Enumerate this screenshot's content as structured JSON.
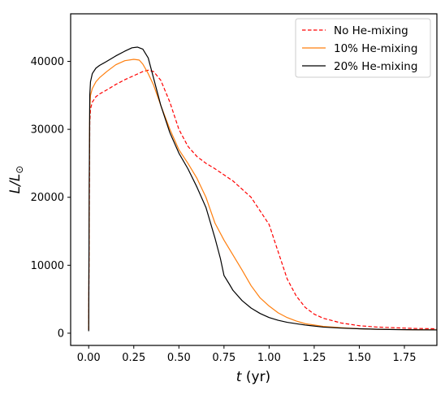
{
  "chart_data": {
    "type": "line",
    "title": "",
    "xlabel_main": "t",
    "xlabel_unit": " (yr)",
    "ylabel_main": "L/L",
    "ylabel_sub": "⊙",
    "xlim": [
      -0.1,
      1.93
    ],
    "ylim": [
      -1800,
      47000
    ],
    "xticks": [
      0.0,
      0.25,
      0.5,
      0.75,
      1.0,
      1.25,
      1.5,
      1.75
    ],
    "xtick_labels": [
      "0.00",
      "0.25",
      "0.50",
      "0.75",
      "1.00",
      "1.25",
      "1.50",
      "1.75"
    ],
    "yticks": [
      0,
      10000,
      20000,
      30000,
      40000
    ],
    "ytick_labels": [
      "0",
      "10000",
      "20000",
      "30000",
      "40000"
    ],
    "grid": false,
    "legend_position": "top-right",
    "series": [
      {
        "name": "No He-mixing",
        "color": "#ff0000",
        "style": "dashed",
        "x": [
          0.0,
          0.003,
          0.006,
          0.01,
          0.02,
          0.04,
          0.06,
          0.1,
          0.15,
          0.2,
          0.25,
          0.3,
          0.33,
          0.36,
          0.4,
          0.45,
          0.5,
          0.55,
          0.6,
          0.65,
          0.7,
          0.75,
          0.8,
          0.85,
          0.9,
          0.95,
          1.0,
          1.05,
          1.1,
          1.15,
          1.2,
          1.25,
          1.3,
          1.4,
          1.5,
          1.6,
          1.7,
          1.8,
          1.93
        ],
        "y": [
          500,
          16000,
          31000,
          33000,
          34000,
          34800,
          35200,
          35800,
          36600,
          37300,
          37900,
          38500,
          38700,
          38500,
          37200,
          34000,
          30000,
          27500,
          26000,
          25000,
          24200,
          23300,
          22400,
          21200,
          20000,
          18000,
          16000,
          12000,
          8000,
          5500,
          3800,
          2800,
          2200,
          1500,
          1100,
          900,
          800,
          700,
          650
        ]
      },
      {
        "name": "10% He-mixing",
        "color": "#ff7f0e",
        "style": "solid",
        "x": [
          0.0,
          0.003,
          0.006,
          0.01,
          0.02,
          0.04,
          0.06,
          0.1,
          0.15,
          0.2,
          0.25,
          0.28,
          0.3,
          0.33,
          0.36,
          0.4,
          0.45,
          0.5,
          0.55,
          0.6,
          0.65,
          0.7,
          0.75,
          0.8,
          0.85,
          0.9,
          0.95,
          1.0,
          1.05,
          1.1,
          1.15,
          1.2,
          1.3,
          1.4,
          1.5,
          1.6,
          1.7,
          1.8,
          1.93
        ],
        "y": [
          500,
          20000,
          33000,
          35000,
          36000,
          37000,
          37600,
          38500,
          39500,
          40100,
          40300,
          40200,
          39600,
          38200,
          36500,
          33500,
          30000,
          27000,
          25000,
          22800,
          20000,
          16200,
          13700,
          11500,
          9300,
          7000,
          5200,
          4000,
          3000,
          2300,
          1800,
          1400,
          1000,
          800,
          650,
          580,
          540,
          510,
          490
        ]
      },
      {
        "name": "20% He-mixing",
        "color": "#000000",
        "style": "solid",
        "x": [
          0.0,
          0.003,
          0.006,
          0.01,
          0.02,
          0.04,
          0.06,
          0.1,
          0.15,
          0.2,
          0.24,
          0.27,
          0.3,
          0.33,
          0.36,
          0.4,
          0.45,
          0.5,
          0.55,
          0.6,
          0.65,
          0.7,
          0.73,
          0.75,
          0.78,
          0.8,
          0.85,
          0.9,
          0.95,
          1.0,
          1.05,
          1.1,
          1.2,
          1.3,
          1.4,
          1.5,
          1.6,
          1.7,
          1.8,
          1.93
        ],
        "y": [
          300,
          22000,
          35000,
          37000,
          38200,
          39000,
          39400,
          40000,
          40800,
          41500,
          42000,
          42100,
          41800,
          40500,
          37500,
          33500,
          29500,
          26500,
          24200,
          21500,
          18500,
          14000,
          11000,
          8500,
          7200,
          6300,
          4800,
          3700,
          2900,
          2300,
          1900,
          1600,
          1200,
          900,
          750,
          650,
          580,
          530,
          500,
          480
        ]
      }
    ]
  }
}
